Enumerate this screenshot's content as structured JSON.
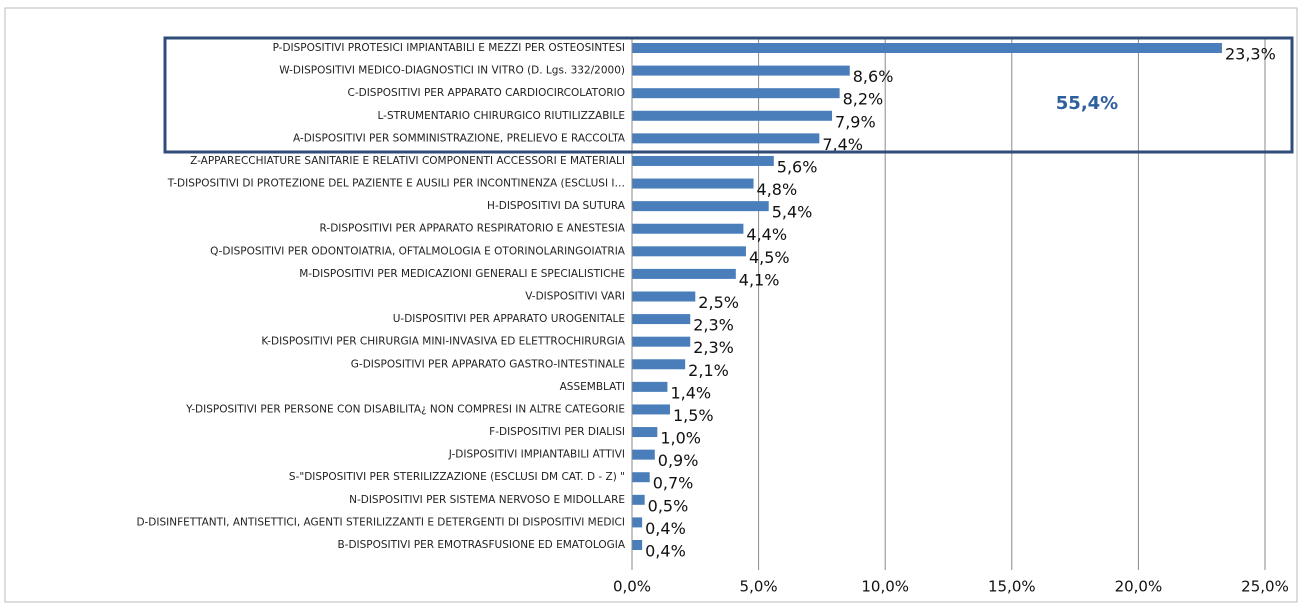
{
  "chart_data": {
    "type": "hbar",
    "categories": [
      "P-DISPOSITIVI PROTESICI IMPIANTABILI E MEZZI PER OSTEOSINTESI",
      "W-DISPOSITIVI MEDICO-DIAGNOSTICI IN VITRO (D. Lgs. 332/2000)",
      "C-DISPOSITIVI PER APPARATO CARDIOCIRCOLATORIO",
      "L-STRUMENTARIO CHIRURGICO RIUTILIZZABILE",
      "A-DISPOSITIVI PER SOMMINISTRAZIONE, PRELIEVO E RACCOLTA",
      "Z-APPARECCHIATURE SANITARIE E RELATIVI COMPONENTI ACCESSORI E MATERIALI",
      "T-DISPOSITIVI DI PROTEZIONE DEL PAZIENTE E AUSILI PER INCONTINENZA (ESCLUSI I…",
      "H-DISPOSITIVI DA SUTURA",
      "R-DISPOSITIVI PER APPARATO RESPIRATORIO E ANESTESIA",
      "Q-DISPOSITIVI PER ODONTOIATRIA, OFTALMOLOGIA E OTORINOLARINGOIATRIA",
      "M-DISPOSITIVI PER MEDICAZIONI GENERALI E SPECIALISTICHE",
      "V-DISPOSITIVI VARI",
      "U-DISPOSITIVI PER APPARATO UROGENITALE",
      "K-DISPOSITIVI PER CHIRURGIA MINI-INVASIVA ED ELETTROCHIRURGIA",
      "G-DISPOSITIVI PER APPARATO GASTRO-INTESTINALE",
      "ASSEMBLATI",
      "Y-DISPOSITIVI PER PERSONE CON DISABILITA¿ NON COMPRESI IN ALTRE CATEGORIE",
      "F-DISPOSITIVI PER DIALISI",
      "J-DISPOSITIVI IMPIANTABILI ATTIVI",
      "S-\"DISPOSITIVI PER STERILIZZAZIONE (ESCLUSI DM CAT. D - Z) \"",
      "N-DISPOSITIVI PER SISTEMA NERVOSO E MIDOLLARE",
      "D-DISINFETTANTI, ANTISETTICI, AGENTI STERILIZZANTI E DETERGENTI DI DISPOSITIVI MEDICI",
      "B-DISPOSITIVI PER EMOTRASFUSIONE ED EMATOLOGIA"
    ],
    "values": [
      23.3,
      8.6,
      8.2,
      7.9,
      7.4,
      5.6,
      4.8,
      5.4,
      4.4,
      4.5,
      4.1,
      2.5,
      2.3,
      2.3,
      2.1,
      1.4,
      1.5,
      1.0,
      0.9,
      0.7,
      0.5,
      0.4,
      0.4
    ],
    "value_labels": [
      "23,3%",
      "8,6%",
      "8,2%",
      "7,9%",
      "7,4%",
      "5,6%",
      "4,8%",
      "5,4%",
      "4,4%",
      "4,5%",
      "4,1%",
      "2,5%",
      "2,3%",
      "2,3%",
      "2,1%",
      "1,4%",
      "1,5%",
      "1,0%",
      "0,9%",
      "0,7%",
      "0,5%",
      "0,4%",
      "0,4%"
    ],
    "color": "#4a7ebb",
    "xlim": [
      0,
      25
    ],
    "xticks": [
      {
        "value": 0,
        "label": "0,0%"
      },
      {
        "value": 5,
        "label": "5,0%"
      },
      {
        "value": 10,
        "label": "10,0%"
      },
      {
        "value": 15,
        "label": "15,0%"
      },
      {
        "value": 20,
        "label": "20,0%"
      },
      {
        "value": 25,
        "label": "25,0%"
      }
    ],
    "grid": true,
    "annotation": "55,4%"
  }
}
